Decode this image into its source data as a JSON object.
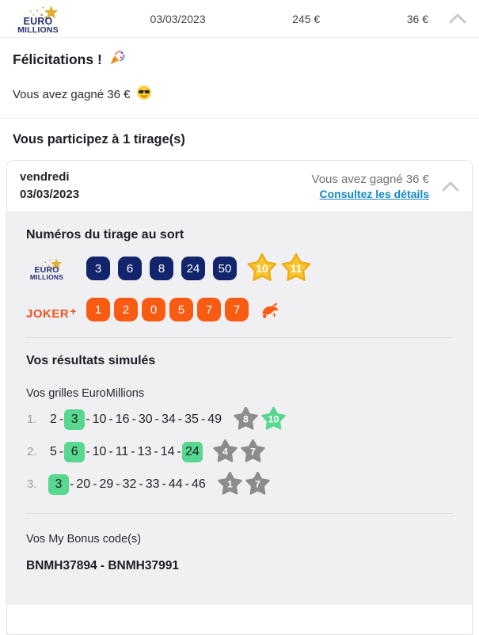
{
  "header": {
    "date": "03/03/2023",
    "stake": "245 €",
    "winnings": "36 €",
    "logo": {
      "line1": "EURO",
      "line2": "MILLIONS"
    }
  },
  "congrats": {
    "title": "Félicitations !",
    "subtitle": "Vous avez gagné 36 €"
  },
  "participation": {
    "text": "Vous participez à 1 tirage(s)"
  },
  "draw_card": {
    "day": "vendredi",
    "date": "03/03/2023",
    "won_text": "Vous avez gagné 36 €",
    "details_link": "Consultez les détails",
    "draw_section_title": "Numéros du tirage au sort",
    "euromillions_numbers": [
      "3",
      "6",
      "8",
      "24",
      "50"
    ],
    "euromillions_stars": [
      "10",
      "11"
    ],
    "joker_label": "JOKER",
    "joker_plus": "+",
    "joker_numbers": [
      "1",
      "2",
      "0",
      "5",
      "7",
      "7"
    ],
    "results_title": "Vos résultats simulés",
    "grids_title": "Vos grilles EuroMillions",
    "grids": [
      {
        "index": "1.",
        "numbers": [
          {
            "v": "2",
            "hit": false
          },
          {
            "v": "3",
            "hit": true
          },
          {
            "v": "10",
            "hit": false
          },
          {
            "v": "16",
            "hit": false
          },
          {
            "v": "30",
            "hit": false
          },
          {
            "v": "34",
            "hit": false
          },
          {
            "v": "35",
            "hit": false
          },
          {
            "v": "49",
            "hit": false
          }
        ],
        "stars": [
          {
            "v": "8",
            "hit": false
          },
          {
            "v": "10",
            "hit": true
          }
        ]
      },
      {
        "index": "2.",
        "numbers": [
          {
            "v": "5",
            "hit": false
          },
          {
            "v": "6",
            "hit": true
          },
          {
            "v": "10",
            "hit": false
          },
          {
            "v": "11",
            "hit": false
          },
          {
            "v": "13",
            "hit": false
          },
          {
            "v": "14",
            "hit": false
          },
          {
            "v": "24",
            "hit": true
          }
        ],
        "stars": [
          {
            "v": "4",
            "hit": false
          },
          {
            "v": "7",
            "hit": false
          }
        ]
      },
      {
        "index": "3.",
        "numbers": [
          {
            "v": "3",
            "hit": true
          },
          {
            "v": "20",
            "hit": false
          },
          {
            "v": "29",
            "hit": false
          },
          {
            "v": "32",
            "hit": false
          },
          {
            "v": "33",
            "hit": false
          },
          {
            "v": "44",
            "hit": false
          },
          {
            "v": "46",
            "hit": false
          }
        ],
        "stars": [
          {
            "v": "1",
            "hit": false
          },
          {
            "v": "7",
            "hit": false
          }
        ]
      }
    ],
    "bonus_title": "Vos My Bonus code(s)",
    "bonus_codes": "BNMH37894 - BNMH37991"
  },
  "icons": {
    "party": "party-popper-emoji",
    "sunglasses": "sunglasses-emoji",
    "chevron": "chevron-up-icon",
    "mascot": "joker-mascot-icon"
  },
  "colors": {
    "navy_ball": "#12246b",
    "orange_ball": "#f85c13",
    "gold_star_fill": "#f9c52f",
    "gold_star_stroke": "#edac17",
    "gray_star": "#8c8c8c",
    "green": "#57d78f",
    "link_blue": "#1086c5",
    "logo_navy": "#262f6e",
    "logo_gold": "#dfae33"
  }
}
